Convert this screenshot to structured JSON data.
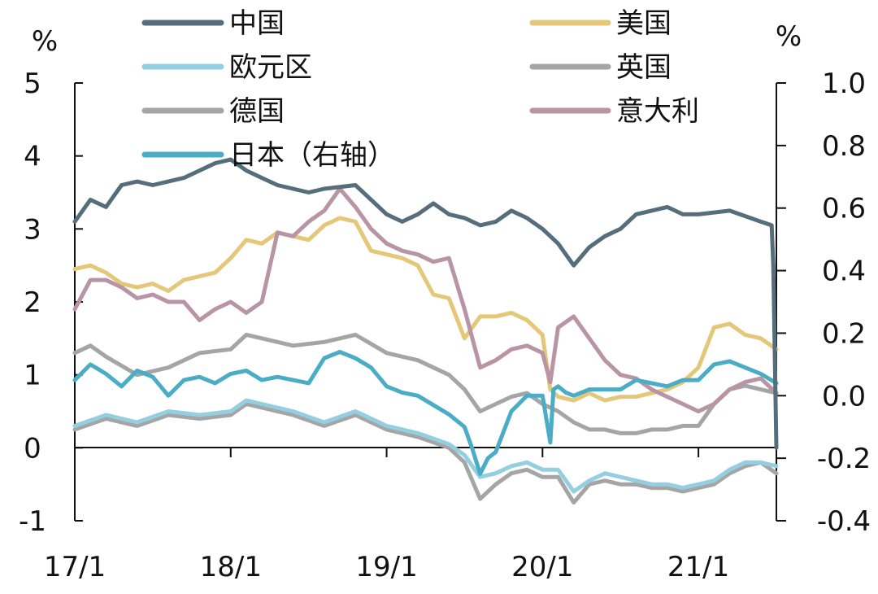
{
  "chart_data": {
    "type": "line",
    "title": "",
    "left_axis": {
      "unit_label": "%",
      "range": [
        -1,
        5
      ],
      "ticks": [
        5,
        4,
        3,
        2,
        1,
        0,
        -1
      ]
    },
    "right_axis": {
      "unit_label": "%",
      "range": [
        -0.4,
        1.0
      ],
      "ticks": [
        "1.0",
        "0.8",
        "0.6",
        "0.4",
        "0.2",
        "0.0",
        "-0.2",
        "-0.4"
      ]
    },
    "x_axis": {
      "ticks": [
        "17/1",
        "18/1",
        "19/1",
        "20/1",
        "21/1"
      ],
      "range_years": [
        2017.0,
        2021.5
      ],
      "tick_years": [
        2017,
        2018,
        2019,
        2020,
        2021
      ]
    },
    "legend": {
      "placement": "top",
      "columns": 2
    },
    "series": [
      {
        "name": "中国",
        "axis": "left",
        "color": "#566e7c",
        "x": [
          2017.0,
          2017.1,
          2017.2,
          2017.3,
          2017.4,
          2017.5,
          2017.7,
          2017.9,
          2018.0,
          2018.1,
          2018.2,
          2018.3,
          2018.5,
          2018.6,
          2018.8,
          2019.0,
          2019.1,
          2019.2,
          2019.3,
          2019.4,
          2019.5,
          2019.6,
          2019.7,
          2019.8,
          2019.9,
          2020.0,
          2020.1,
          2020.2,
          2020.3,
          2020.4,
          2020.5,
          2020.6,
          2020.7,
          2020.8,
          2020.9,
          2021.0,
          2021.2,
          2021.4,
          2021.47,
          2021.48,
          2021.5
        ],
        "y": [
          3.1,
          3.4,
          3.3,
          3.6,
          3.65,
          3.6,
          3.7,
          3.9,
          3.95,
          3.8,
          3.7,
          3.6,
          3.5,
          3.55,
          3.6,
          3.2,
          3.1,
          3.2,
          3.35,
          3.2,
          3.15,
          3.05,
          3.1,
          3.25,
          3.15,
          3.0,
          2.8,
          2.5,
          2.75,
          2.9,
          3.0,
          3.2,
          3.25,
          3.3,
          3.2,
          3.2,
          3.25,
          3.1,
          3.05,
          2.5,
          0.0
        ]
      },
      {
        "name": "美国",
        "axis": "left",
        "color": "#e5c77a",
        "x": [
          2017.0,
          2017.1,
          2017.2,
          2017.3,
          2017.4,
          2017.5,
          2017.6,
          2017.7,
          2017.8,
          2017.9,
          2018.0,
          2018.1,
          2018.2,
          2018.3,
          2018.4,
          2018.5,
          2018.6,
          2018.7,
          2018.8,
          2018.9,
          2019.0,
          2019.1,
          2019.2,
          2019.3,
          2019.4,
          2019.5,
          2019.6,
          2019.7,
          2019.8,
          2019.9,
          2020.0,
          2020.05,
          2020.1,
          2020.2,
          2020.3,
          2020.4,
          2020.5,
          2020.6,
          2020.7,
          2020.8,
          2020.9,
          2021.0,
          2021.1,
          2021.2,
          2021.3,
          2021.4,
          2021.5
        ],
        "y": [
          2.45,
          2.5,
          2.4,
          2.25,
          2.2,
          2.25,
          2.15,
          2.3,
          2.35,
          2.4,
          2.6,
          2.85,
          2.8,
          2.95,
          2.9,
          2.85,
          3.05,
          3.15,
          3.1,
          2.7,
          2.65,
          2.6,
          2.5,
          2.1,
          2.05,
          1.5,
          1.8,
          1.8,
          1.85,
          1.75,
          1.55,
          0.8,
          0.7,
          0.65,
          0.75,
          0.65,
          0.7,
          0.7,
          0.75,
          0.8,
          0.9,
          1.1,
          1.65,
          1.7,
          1.55,
          1.5,
          1.35
        ]
      },
      {
        "name": "欧元区",
        "axis": "left",
        "color": "#93cfe0",
        "x": [
          2017.0,
          2017.2,
          2017.4,
          2017.6,
          2017.8,
          2018.0,
          2018.1,
          2018.2,
          2018.4,
          2018.6,
          2018.8,
          2019.0,
          2019.2,
          2019.4,
          2019.5,
          2019.6,
          2019.7,
          2019.8,
          2019.9,
          2020.0,
          2020.1,
          2020.2,
          2020.3,
          2020.4,
          2020.5,
          2020.6,
          2020.7,
          2020.8,
          2020.9,
          2021.0,
          2021.1,
          2021.2,
          2021.3,
          2021.4,
          2021.5
        ],
        "y": [
          0.3,
          0.45,
          0.35,
          0.5,
          0.45,
          0.5,
          0.65,
          0.6,
          0.5,
          0.35,
          0.5,
          0.3,
          0.2,
          0.05,
          -0.1,
          -0.4,
          -0.35,
          -0.25,
          -0.2,
          -0.3,
          -0.3,
          -0.6,
          -0.45,
          -0.35,
          -0.4,
          -0.45,
          -0.5,
          -0.5,
          -0.55,
          -0.5,
          -0.45,
          -0.3,
          -0.2,
          -0.2,
          -0.25
        ]
      },
      {
        "name": "英国",
        "axis": "left",
        "color": "#a5a5a5",
        "x": [
          2017.0,
          2017.1,
          2017.2,
          2017.4,
          2017.6,
          2017.8,
          2018.0,
          2018.1,
          2018.2,
          2018.4,
          2018.6,
          2018.8,
          2019.0,
          2019.2,
          2019.4,
          2019.5,
          2019.6,
          2019.7,
          2019.8,
          2019.9,
          2020.0,
          2020.1,
          2020.2,
          2020.3,
          2020.4,
          2020.5,
          2020.6,
          2020.7,
          2020.8,
          2020.9,
          2021.0,
          2021.1,
          2021.2,
          2021.3,
          2021.4,
          2021.5
        ],
        "y": [
          1.3,
          1.4,
          1.25,
          1.0,
          1.1,
          1.3,
          1.35,
          1.55,
          1.5,
          1.4,
          1.45,
          1.55,
          1.3,
          1.2,
          1.0,
          0.8,
          0.5,
          0.6,
          0.7,
          0.75,
          0.6,
          0.5,
          0.35,
          0.25,
          0.25,
          0.2,
          0.2,
          0.25,
          0.25,
          0.3,
          0.3,
          0.6,
          0.8,
          0.85,
          0.8,
          0.75
        ]
      },
      {
        "name": "德国",
        "axis": "left",
        "color": "#a5a5a5",
        "x": [
          2017.0,
          2017.2,
          2017.4,
          2017.6,
          2017.8,
          2018.0,
          2018.1,
          2018.2,
          2018.4,
          2018.6,
          2018.8,
          2019.0,
          2019.2,
          2019.4,
          2019.5,
          2019.6,
          2019.7,
          2019.8,
          2019.9,
          2020.0,
          2020.1,
          2020.2,
          2020.3,
          2020.4,
          2020.5,
          2020.6,
          2020.7,
          2020.8,
          2020.9,
          2021.0,
          2021.1,
          2021.2,
          2021.3,
          2021.4,
          2021.5
        ],
        "y": [
          0.25,
          0.4,
          0.3,
          0.45,
          0.4,
          0.45,
          0.6,
          0.55,
          0.45,
          0.3,
          0.45,
          0.25,
          0.15,
          0.0,
          -0.2,
          -0.7,
          -0.5,
          -0.35,
          -0.3,
          -0.4,
          -0.4,
          -0.75,
          -0.5,
          -0.45,
          -0.5,
          -0.5,
          -0.55,
          -0.55,
          -0.6,
          -0.55,
          -0.5,
          -0.35,
          -0.25,
          -0.2,
          -0.35
        ]
      },
      {
        "name": "意大利",
        "axis": "left",
        "color": "#b894a4",
        "x": [
          2017.0,
          2017.1,
          2017.2,
          2017.3,
          2017.4,
          2017.5,
          2017.6,
          2017.7,
          2017.8,
          2017.9,
          2018.0,
          2018.1,
          2018.2,
          2018.3,
          2018.4,
          2018.5,
          2018.6,
          2018.7,
          2018.8,
          2018.9,
          2019.0,
          2019.1,
          2019.2,
          2019.3,
          2019.4,
          2019.5,
          2019.6,
          2019.7,
          2019.8,
          2019.9,
          2020.0,
          2020.05,
          2020.1,
          2020.2,
          2020.3,
          2020.4,
          2020.5,
          2020.6,
          2020.7,
          2020.8,
          2020.9,
          2021.0,
          2021.1,
          2021.2,
          2021.3,
          2021.4,
          2021.5
        ],
        "y": [
          1.9,
          2.3,
          2.3,
          2.2,
          2.05,
          2.1,
          2.0,
          2.0,
          1.75,
          1.9,
          2.0,
          1.85,
          2.0,
          2.95,
          2.9,
          3.1,
          3.25,
          3.55,
          3.3,
          3.0,
          2.8,
          2.7,
          2.65,
          2.55,
          2.6,
          1.9,
          1.1,
          1.2,
          1.35,
          1.4,
          1.3,
          0.9,
          1.65,
          1.8,
          1.5,
          1.2,
          1.0,
          0.95,
          0.8,
          0.7,
          0.6,
          0.5,
          0.6,
          0.8,
          0.9,
          0.95,
          0.75
        ]
      },
      {
        "name": "日本（右轴）",
        "axis": "right",
        "color": "#4bacc6",
        "x": [
          2017.0,
          2017.1,
          2017.2,
          2017.3,
          2017.4,
          2017.5,
          2017.6,
          2017.7,
          2017.8,
          2017.9,
          2018.0,
          2018.1,
          2018.2,
          2018.3,
          2018.4,
          2018.5,
          2018.6,
          2018.7,
          2018.8,
          2018.9,
          2019.0,
          2019.1,
          2019.2,
          2019.3,
          2019.4,
          2019.5,
          2019.55,
          2019.6,
          2019.65,
          2019.7,
          2019.8,
          2019.9,
          2020.0,
          2020.05,
          2020.07,
          2020.1,
          2020.15,
          2020.2,
          2020.3,
          2020.4,
          2020.5,
          2020.6,
          2020.7,
          2020.8,
          2020.9,
          2021.0,
          2021.1,
          2021.2,
          2021.3,
          2021.4,
          2021.5
        ],
        "y": [
          0.05,
          0.1,
          0.07,
          0.03,
          0.08,
          0.06,
          0.0,
          0.05,
          0.06,
          0.04,
          0.07,
          0.08,
          0.05,
          0.06,
          0.05,
          0.04,
          0.12,
          0.14,
          0.12,
          0.09,
          0.03,
          0.01,
          0.0,
          -0.03,
          -0.06,
          -0.1,
          -0.17,
          -0.25,
          -0.2,
          -0.18,
          -0.05,
          0.0,
          0.0,
          -0.15,
          0.02,
          0.03,
          0.01,
          0.0,
          0.02,
          0.02,
          0.02,
          0.05,
          0.04,
          0.03,
          0.05,
          0.05,
          0.1,
          0.11,
          0.09,
          0.07,
          0.04
        ]
      }
    ]
  }
}
